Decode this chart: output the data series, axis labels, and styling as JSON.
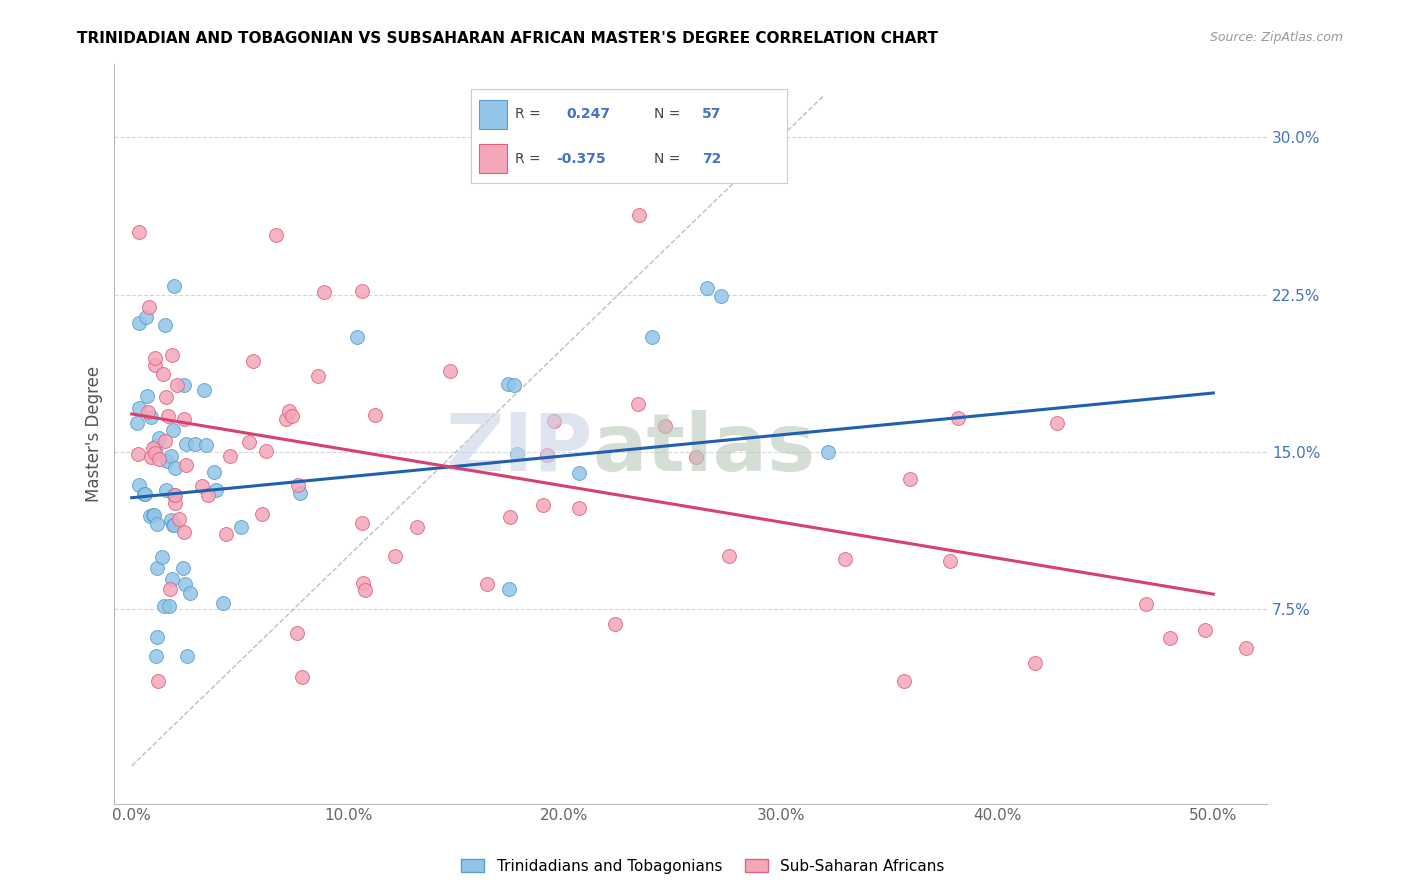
{
  "title": "TRINIDADIAN AND TOBAGONIAN VS SUBSAHARAN AFRICAN MASTER'S DEGREE CORRELATION CHART",
  "source": "Source: ZipAtlas.com",
  "ylabel": "Master's Degree",
  "R_blue": 0.247,
  "N_blue": 57,
  "R_pink": -0.375,
  "N_pink": 72,
  "blue_scatter_color": "#92c5e8",
  "blue_edge_color": "#5b9ec9",
  "pink_scatter_color": "#f4a7b9",
  "pink_edge_color": "#e06080",
  "blue_line_color": "#2060b0",
  "pink_line_color": "#d94070",
  "diag_color": "#b0b0b0",
  "grid_color": "#d8d8d8",
  "ytick_color": "#4472c4",
  "xtick_color": "#666666",
  "watermark_zip_color": "#c8d4e8",
  "watermark_atlas_color": "#b8c8b8",
  "blue_line_x0": 0.0,
  "blue_line_y0": 0.128,
  "blue_line_x1": 0.5,
  "blue_line_y1": 0.178,
  "pink_line_x0": 0.0,
  "pink_line_y0": 0.168,
  "pink_line_x1": 0.5,
  "pink_line_y1": 0.082,
  "xlim_min": -0.008,
  "xlim_max": 0.525,
  "ylim_min": -0.018,
  "ylim_max": 0.335,
  "yticks": [
    0.075,
    0.15,
    0.225,
    0.3
  ],
  "ytick_labels": [
    "7.5%",
    "15.0%",
    "22.5%",
    "30.0%"
  ],
  "xticks": [
    0.0,
    0.1,
    0.2,
    0.3,
    0.4,
    0.5
  ],
  "xtick_labels": [
    "0.0%",
    "10.0%",
    "20.0%",
    "30.0%",
    "40.0%",
    "50.0%"
  ],
  "legend_top_label": "Trinidadians and Tobagonians",
  "legend_bottom_label": "Sub-Saharan Africans"
}
